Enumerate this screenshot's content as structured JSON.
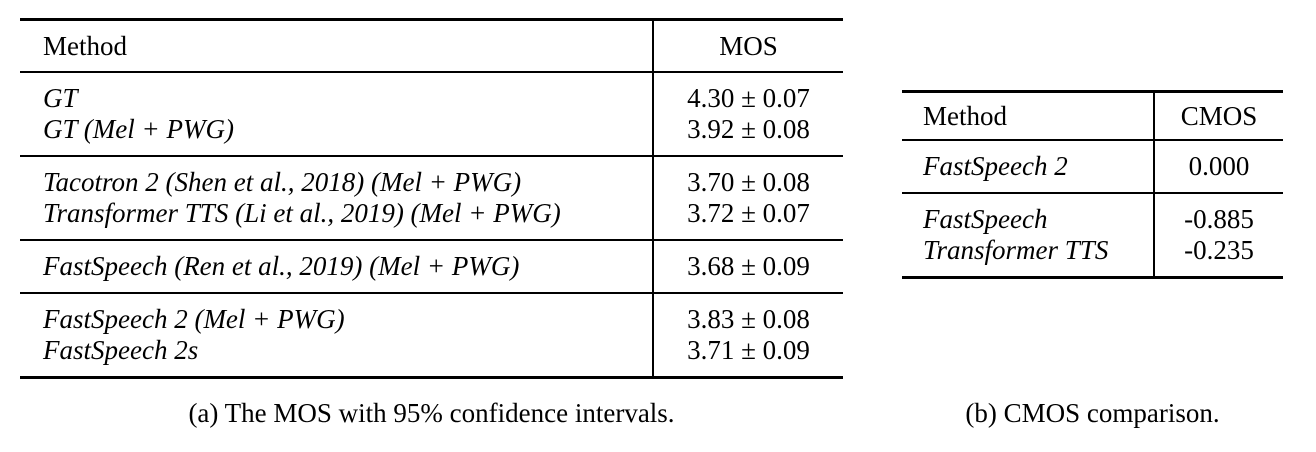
{
  "colors": {
    "text": "#000000",
    "rule": "#000000",
    "background": "#ffffff"
  },
  "table_a": {
    "header": {
      "method": "Method",
      "value": "MOS"
    },
    "groups": [
      {
        "rows": [
          {
            "method": "GT",
            "value": "4.30 ± 0.07"
          },
          {
            "method": "GT (Mel + PWG)",
            "value": "3.92 ± 0.08"
          }
        ]
      },
      {
        "rows": [
          {
            "method": "Tacotron 2 (Shen et al., 2018) (Mel + PWG)",
            "value": "3.70 ± 0.08"
          },
          {
            "method": "Transformer TTS (Li et al., 2019) (Mel + PWG)",
            "value": "3.72 ± 0.07"
          }
        ]
      },
      {
        "rows": [
          {
            "method": "FastSpeech (Ren et al., 2019) (Mel + PWG)",
            "value": "3.68 ± 0.09"
          }
        ]
      },
      {
        "rows": [
          {
            "method": "FastSpeech 2 (Mel + PWG)",
            "value": "3.83 ± 0.08"
          },
          {
            "method": "FastSpeech 2s",
            "value": "3.71 ± 0.09"
          }
        ]
      }
    ],
    "caption": "(a) The MOS with 95% confidence intervals."
  },
  "table_b": {
    "header": {
      "method": "Method",
      "value": "CMOS"
    },
    "groups": [
      {
        "rows": [
          {
            "method": "FastSpeech 2",
            "value": "0.000"
          }
        ]
      },
      {
        "rows": [
          {
            "method": "FastSpeech",
            "value": "-0.885"
          },
          {
            "method": "Transformer TTS",
            "value": "-0.235"
          }
        ]
      }
    ],
    "caption": "(b) CMOS comparison."
  }
}
